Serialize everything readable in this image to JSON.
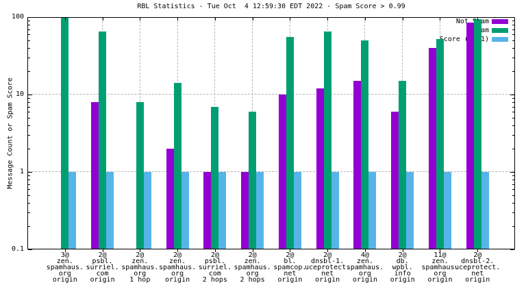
{
  "title": "RBL Statistics - Tue Oct  4 12:59:30 EDT 2022 - Spam Score > 0.99",
  "chart_data": {
    "type": "bar",
    "yscale": "log",
    "title": "RBL Statistics - Tue Oct  4 12:59:30 EDT 2022 - Spam Score > 0.99",
    "ylabel": "Message Count or Spam Score",
    "xlabel": "",
    "ylim": [
      0.1,
      100
    ],
    "yticks": [
      {
        "label": "100",
        "value": 100
      },
      {
        "label": "10",
        "value": 10
      },
      {
        "label": "1",
        "value": 1
      },
      {
        "label": "0.1",
        "value": 0.1
      }
    ],
    "grid": true,
    "legend_position": "top-right-inside",
    "series": [
      {
        "name": "Not Spam",
        "color": "#9400d3",
        "values": [
          0,
          8,
          0,
          2,
          1,
          1,
          10,
          12,
          15,
          6,
          40,
          85
        ]
      },
      {
        "name": "Spam",
        "color": "#009e73",
        "values": [
          100,
          65,
          8,
          14,
          7,
          6,
          55,
          65,
          50,
          15,
          52,
          95
        ]
      },
      {
        "name": "Score (0..1)",
        "color": "#56b4e9",
        "values": [
          1,
          1,
          1,
          1,
          1,
          1,
          1,
          1,
          1,
          1,
          1,
          1
        ]
      }
    ],
    "categories": [
      [
        "3@",
        "zen.",
        "spamhaus.",
        "org",
        "origin"
      ],
      [
        "2@",
        "psbl.",
        "surriel.",
        "com",
        "origin"
      ],
      [
        "2@",
        "zen.",
        "spamhaus.",
        "org",
        "1 hop"
      ],
      [
        "2@",
        "zen.",
        "spamhaus.",
        "org",
        "origin"
      ],
      [
        "2@",
        "psbl.",
        "surriel.",
        "com",
        "2 hops"
      ],
      [
        "2@",
        "zen.",
        "spamhaus.",
        "org",
        "2 hops"
      ],
      [
        "2@",
        "bl.",
        "spamcop.",
        "net",
        "origin"
      ],
      [
        "2@",
        "dnsbl-1.",
        "uceprotect.",
        "net",
        "origin"
      ],
      [
        "4@",
        "zen.",
        "spamhaus.",
        "org",
        "origin"
      ],
      [
        "2@",
        "db.",
        "wpbl.",
        "info",
        "origin"
      ],
      [
        "11@",
        "zen.",
        "spamhaus.",
        "org",
        "origin"
      ],
      [
        "2@",
        "dnsbl-2.",
        "uceprotect.",
        "net",
        "origin"
      ]
    ]
  }
}
